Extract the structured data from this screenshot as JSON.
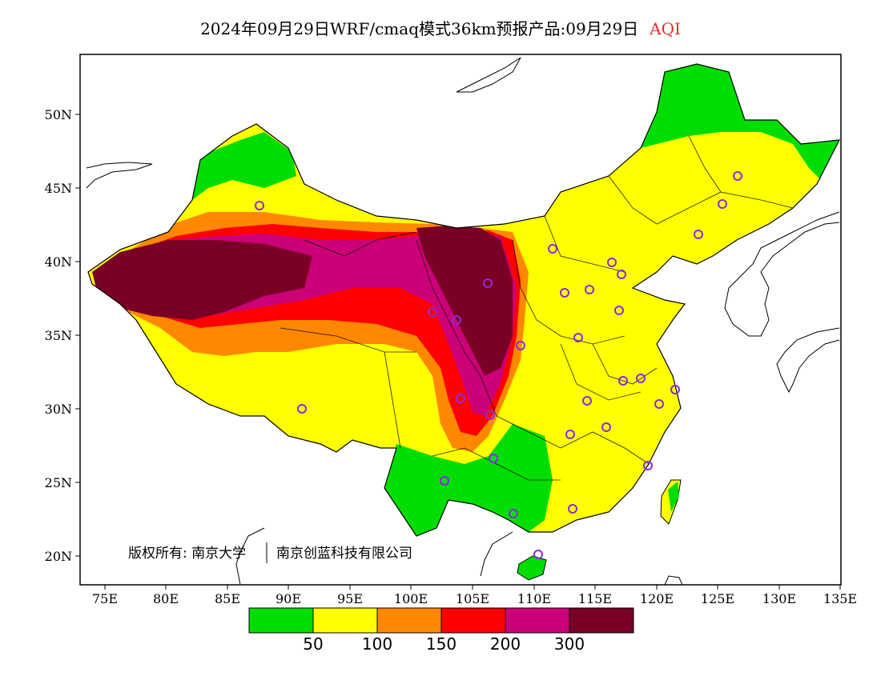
{
  "title": {
    "main": "2024年09月29日WRF/cmaq模式36km预报产品:09月29日",
    "variable": "AQI"
  },
  "map": {
    "x_ticks": [
      "75E",
      "80E",
      "85E",
      "90E",
      "95E",
      "100E",
      "105E",
      "110E",
      "115E",
      "120E",
      "125E",
      "130E",
      "135E"
    ],
    "y_ticks": [
      "50N",
      "45N",
      "40N",
      "35N",
      "30N",
      "25N",
      "20N"
    ],
    "copyright_left": "版权所有: 南京大学",
    "copyright_right": "南京创蓝科技有限公司"
  },
  "legend": {
    "colors": [
      "#00dd00",
      "#ffff00",
      "#ff8800",
      "#ff0000",
      "#cc0077",
      "#7a0025"
    ],
    "labels": [
      "50",
      "100",
      "150",
      "200",
      "300"
    ]
  },
  "colors": {
    "good": "#00dd00",
    "moderate": "#ffff00",
    "unhealthy_sensitive": "#ff8800",
    "unhealthy": "#ff0000",
    "very_unhealthy": "#cc0077",
    "hazardous": "#7a0025",
    "station_marker": "#8a2be2",
    "title_accent": "#e03030"
  }
}
